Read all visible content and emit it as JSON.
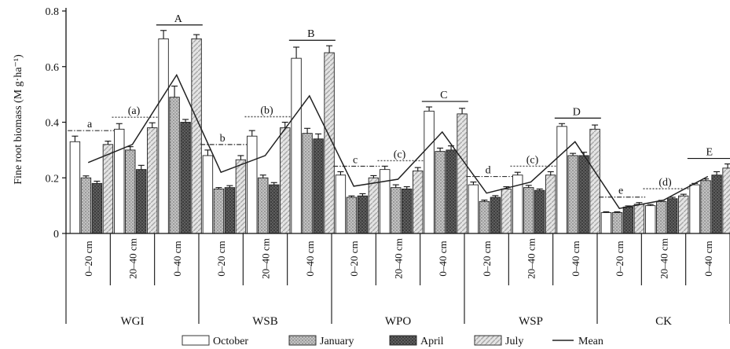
{
  "chart_data": {
    "type": "bar",
    "ylabel": "Fine root biomass (M g·ha⁻¹)",
    "ylim": [
      0,
      0.8
    ],
    "yticks": [
      0,
      0.2,
      0.4,
      0.6,
      0.8
    ],
    "yticklabels": [
      "0",
      "0.2",
      "0.4",
      "0.6",
      "0.8"
    ],
    "sites": [
      "WGI",
      "WSB",
      "WPO",
      "WSP",
      "CK"
    ],
    "depths": [
      "0–20 cm",
      "20–40 cm",
      "0–40 cm"
    ],
    "months": [
      "October",
      "January",
      "April",
      "July"
    ],
    "mean_label": "Mean",
    "colors": {
      "October": "#ffffff",
      "January": "#b8b8b8",
      "April": "#555555",
      "July": "#d6d6d6",
      "Mean": "#222222"
    },
    "groups": [
      {
        "site": "WGI",
        "depth": "0–20 cm",
        "values": [
          0.33,
          0.2,
          0.18,
          0.32
        ],
        "errors": [
          0.02,
          0.007,
          0.008,
          0.012
        ],
        "mean": 0.255,
        "letter": "a",
        "letter_type": "dashdot"
      },
      {
        "site": "WGI",
        "depth": "20–40 cm",
        "values": [
          0.375,
          0.3,
          0.23,
          0.38
        ],
        "errors": [
          0.02,
          0.012,
          0.015,
          0.018
        ],
        "mean": 0.32,
        "letter": "(a)",
        "letter_type": "dotted"
      },
      {
        "site": "WGI",
        "depth": "0–40 cm",
        "values": [
          0.7,
          0.49,
          0.4,
          0.7
        ],
        "errors": [
          0.03,
          0.04,
          0.01,
          0.015
        ],
        "mean": 0.57,
        "letter": "A",
        "letter_type": "solid"
      },
      {
        "site": "WSB",
        "depth": "0–20 cm",
        "values": [
          0.28,
          0.16,
          0.165,
          0.265
        ],
        "errors": [
          0.02,
          0.005,
          0.007,
          0.015
        ],
        "mean": 0.22,
        "letter": "b",
        "letter_type": "dashdot"
      },
      {
        "site": "WSB",
        "depth": "20–40 cm",
        "values": [
          0.35,
          0.2,
          0.175,
          0.38
        ],
        "errors": [
          0.02,
          0.01,
          0.008,
          0.02
        ],
        "mean": 0.28,
        "letter": "(b)",
        "letter_type": "dotted"
      },
      {
        "site": "WSB",
        "depth": "0–40 cm",
        "values": [
          0.63,
          0.36,
          0.34,
          0.65
        ],
        "errors": [
          0.04,
          0.018,
          0.018,
          0.025
        ],
        "mean": 0.495,
        "letter": "B",
        "letter_type": "solid"
      },
      {
        "site": "WPO",
        "depth": "0–20 cm",
        "values": [
          0.21,
          0.13,
          0.135,
          0.2
        ],
        "errors": [
          0.012,
          0.005,
          0.008,
          0.008
        ],
        "mean": 0.17,
        "letter": "c",
        "letter_type": "dashdot"
      },
      {
        "site": "WPO",
        "depth": "20–40 cm",
        "values": [
          0.23,
          0.165,
          0.16,
          0.225
        ],
        "errors": [
          0.012,
          0.01,
          0.008,
          0.012
        ],
        "mean": 0.195,
        "letter": "(c)",
        "letter_type": "dotted"
      },
      {
        "site": "WPO",
        "depth": "0–40 cm",
        "values": [
          0.44,
          0.295,
          0.3,
          0.43
        ],
        "errors": [
          0.015,
          0.012,
          0.015,
          0.02
        ],
        "mean": 0.365,
        "letter": "C",
        "letter_type": "solid"
      },
      {
        "site": "WSP",
        "depth": "0–20 cm",
        "values": [
          0.175,
          0.115,
          0.13,
          0.16
        ],
        "errors": [
          0.01,
          0.005,
          0.006,
          0.008
        ],
        "mean": 0.145,
        "letter": "d",
        "letter_type": "dashdot"
      },
      {
        "site": "WSP",
        "depth": "20–40 cm",
        "values": [
          0.21,
          0.165,
          0.155,
          0.21
        ],
        "errors": [
          0.01,
          0.008,
          0.005,
          0.012
        ],
        "mean": 0.185,
        "letter": "(c)",
        "letter_type": "dotted"
      },
      {
        "site": "WSP",
        "depth": "0–40 cm",
        "values": [
          0.385,
          0.28,
          0.28,
          0.375
        ],
        "errors": [
          0.01,
          0.008,
          0.012,
          0.015
        ],
        "mean": 0.33,
        "letter": "D",
        "letter_type": "solid"
      },
      {
        "site": "CK",
        "depth": "0–20 cm",
        "values": [
          0.075,
          0.075,
          0.095,
          0.105
        ],
        "errors": [
          0.003,
          0.003,
          0.004,
          0.006
        ],
        "mean": 0.09,
        "letter": "e",
        "letter_type": "dashdot"
      },
      {
        "site": "CK",
        "depth": "20–40 cm",
        "values": [
          0.1,
          0.115,
          0.125,
          0.135
        ],
        "errors": [
          0.004,
          0.004,
          0.005,
          0.006
        ],
        "mean": 0.12,
        "letter": "(d)",
        "letter_type": "dotted"
      },
      {
        "site": "CK",
        "depth": "0–40 cm",
        "values": [
          0.175,
          0.19,
          0.21,
          0.235
        ],
        "errors": [
          0.005,
          0.006,
          0.012,
          0.015
        ],
        "mean": 0.205,
        "letter": "E",
        "letter_type": "solid"
      }
    ]
  }
}
